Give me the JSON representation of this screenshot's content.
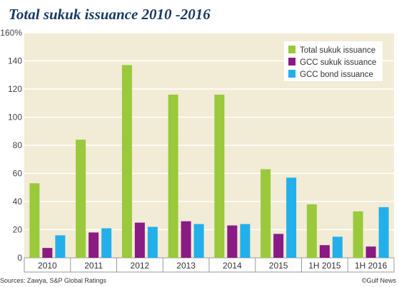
{
  "header": {
    "title": "Total sukuk issuance 2010 -2016"
  },
  "footer": {
    "sources": "Sources: Zawya, S&P Global Ratings",
    "credit": "©Gulf News"
  },
  "colors": {
    "total_sukuk": "#9ac93b",
    "gcc_sukuk": "#8a1a84",
    "gcc_bond": "#23b0ea",
    "plot_bg": "#f2ebd5",
    "grid": "#ffffff"
  },
  "chart_data": {
    "type": "bar",
    "title": "Total sukuk issuance 2010 -2016",
    "categories": [
      "2010",
      "2011",
      "2012",
      "2013",
      "2014",
      "2015",
      "1H 2015",
      "1H 2016"
    ],
    "series": [
      {
        "name": "Total sukuk issuance",
        "color": "#9ac93b",
        "values": [
          53,
          84,
          137,
          116,
          116,
          63,
          38,
          33
        ]
      },
      {
        "name": "GCC sukuk issuance",
        "color": "#8a1a84",
        "values": [
          7,
          18,
          25,
          26,
          23,
          17,
          9,
          8
        ]
      },
      {
        "name": "GCC bond issuance",
        "color": "#23b0ea",
        "values": [
          16,
          21,
          22,
          24,
          24,
          57,
          15,
          36
        ]
      }
    ],
    "ylim": [
      0,
      160
    ],
    "yticks": [
      0,
      20,
      40,
      60,
      80,
      100,
      120,
      140,
      160
    ],
    "ytick_labels": [
      "0",
      "20",
      "40",
      "60",
      "80",
      "100",
      "120",
      "140",
      "160%"
    ],
    "grid": true,
    "legend_position": "top-right"
  }
}
